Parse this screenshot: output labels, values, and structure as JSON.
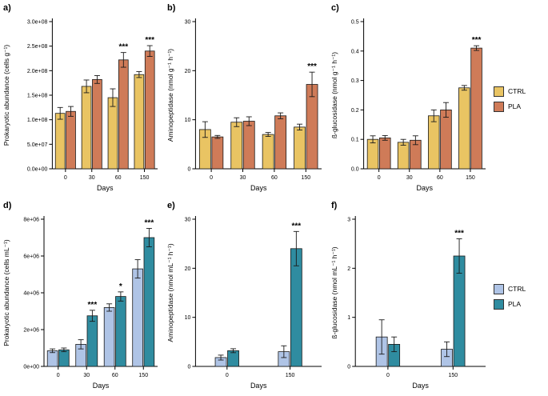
{
  "figure": {
    "background": "#ffffff"
  },
  "legends": [
    {
      "row": "top",
      "entries": [
        {
          "label": "CTRL",
          "color": "#E9C463"
        },
        {
          "label": "PLA",
          "color": "#CF7B58"
        }
      ]
    },
    {
      "row": "bottom",
      "entries": [
        {
          "label": "CTRL",
          "color": "#AFC4E6"
        },
        {
          "label": "PLA",
          "color": "#2F8CA0"
        }
      ]
    }
  ],
  "chart_data": [
    {
      "panel_label": "a)",
      "type": "bar",
      "xlabel": "Days",
      "ylabel": "Prokaryotic abundance (cells g⁻¹)",
      "categories": [
        "0",
        "30",
        "60",
        "150"
      ],
      "ylim": [
        0,
        300000000.0
      ],
      "yticks": [
        0,
        50000000.0,
        100000000.0,
        150000000.0,
        200000000.0,
        250000000.0,
        300000000.0
      ],
      "ytick_labels": [
        "0.0e+00",
        "5.0e+07",
        "1.0e+08",
        "1.5e+08",
        "2.0e+08",
        "2.5e+08",
        "3.0e+08"
      ],
      "series": [
        {
          "name": "CTRL",
          "color": "#E9C463",
          "values": [
            113000000.0,
            168000000.0,
            145000000.0,
            192000000.0
          ],
          "errors": [
            12000000.0,
            13000000.0,
            18000000.0,
            6000000.0
          ]
        },
        {
          "name": "PLA",
          "color": "#CF7B58",
          "values": [
            117000000.0,
            182000000.0,
            222000000.0,
            240000000.0
          ],
          "errors": [
            10000000.0,
            8000000.0,
            15000000.0,
            11000000.0
          ]
        }
      ],
      "significance": [
        {
          "category_index": 2,
          "series_index": 1,
          "label": "***"
        },
        {
          "category_index": 3,
          "series_index": 1,
          "label": "***"
        }
      ]
    },
    {
      "panel_label": "b)",
      "type": "bar",
      "xlabel": "Days",
      "ylabel": "Aminopeptidase (nmol g⁻¹ h⁻¹)",
      "categories": [
        "0",
        "30",
        "60",
        "150"
      ],
      "ylim": [
        0,
        30
      ],
      "yticks": [
        0,
        10,
        20,
        30
      ],
      "ytick_labels": [
        "0",
        "10",
        "20",
        "30"
      ],
      "series": [
        {
          "name": "CTRL",
          "color": "#E9C463",
          "values": [
            8.0,
            9.5,
            7.0,
            8.5
          ],
          "errors": [
            1.6,
            0.9,
            0.4,
            0.6
          ]
        },
        {
          "name": "PLA",
          "color": "#CF7B58",
          "values": [
            6.5,
            9.7,
            10.8,
            17.2
          ],
          "errors": [
            0.3,
            0.9,
            0.6,
            2.5
          ]
        }
      ],
      "significance": [
        {
          "category_index": 3,
          "series_index": 1,
          "label": "***"
        }
      ]
    },
    {
      "panel_label": "c)",
      "type": "bar",
      "xlabel": "Days",
      "ylabel": "ß-glucosidase (nmol g⁻¹ h⁻¹)",
      "categories": [
        "0",
        "30",
        "60",
        "150"
      ],
      "ylim": [
        0,
        0.5
      ],
      "yticks": [
        0,
        0.1,
        0.2,
        0.3,
        0.4,
        0.5
      ],
      "ytick_labels": [
        "0.0",
        "0.1",
        "0.2",
        "0.3",
        "0.4",
        "0.5"
      ],
      "series": [
        {
          "name": "CTRL",
          "color": "#E9C463",
          "values": [
            0.1,
            0.09,
            0.18,
            0.275
          ],
          "errors": [
            0.012,
            0.01,
            0.02,
            0.008
          ]
        },
        {
          "name": "PLA",
          "color": "#CF7B58",
          "values": [
            0.105,
            0.097,
            0.2,
            0.41
          ],
          "errors": [
            0.008,
            0.015,
            0.025,
            0.008
          ]
        }
      ],
      "significance": [
        {
          "category_index": 3,
          "series_index": 1,
          "label": "***"
        }
      ]
    },
    {
      "panel_label": "d)",
      "type": "bar",
      "xlabel": "Days",
      "ylabel": "Prokaryotic abundance (cells mL⁻¹)",
      "categories": [
        "0",
        "30",
        "60",
        "150"
      ],
      "ylim": [
        0,
        8000000.0
      ],
      "yticks": [
        0,
        2000000.0,
        4000000.0,
        6000000.0,
        8000000.0
      ],
      "ytick_labels": [
        "0e+00",
        "2e+06",
        "4e+06",
        "6e+06",
        "8e+06"
      ],
      "series": [
        {
          "name": "CTRL",
          "color": "#AFC4E6",
          "values": [
            850000.0,
            1200000.0,
            3200000.0,
            5300000.0
          ],
          "errors": [
            100000.0,
            250000.0,
            200000.0,
            500000.0
          ]
        },
        {
          "name": "PLA",
          "color": "#2F8CA0",
          "values": [
            900000.0,
            2750000.0,
            3800000.0,
            7000000.0
          ],
          "errors": [
            100000.0,
            300000.0,
            250000.0,
            500000.0
          ]
        }
      ],
      "significance": [
        {
          "category_index": 1,
          "series_index": 1,
          "label": "***"
        },
        {
          "category_index": 2,
          "series_index": 1,
          "label": "*"
        },
        {
          "category_index": 3,
          "series_index": 1,
          "label": "***"
        }
      ]
    },
    {
      "panel_label": "e)",
      "type": "bar",
      "xlabel": "Days",
      "ylabel": "Aminopeptidase (nmol mL⁻¹ h⁻¹)",
      "categories": [
        "0",
        "150"
      ],
      "ylim": [
        0,
        30
      ],
      "yticks": [
        0,
        10,
        20,
        30
      ],
      "ytick_labels": [
        "0",
        "10",
        "20",
        "30"
      ],
      "series": [
        {
          "name": "CTRL",
          "color": "#AFC4E6",
          "values": [
            1.8,
            3.0
          ],
          "errors": [
            0.5,
            1.2
          ]
        },
        {
          "name": "PLA",
          "color": "#2F8CA0",
          "values": [
            3.2,
            24.0
          ],
          "errors": [
            0.4,
            3.5
          ]
        }
      ],
      "significance": [
        {
          "category_index": 1,
          "series_index": 1,
          "label": "***"
        }
      ]
    },
    {
      "panel_label": "f)",
      "type": "bar",
      "xlabel": "Days",
      "ylabel": "ß-glucosidase (nmol mL⁻¹ h⁻¹)",
      "categories": [
        "0",
        "150"
      ],
      "ylim": [
        0,
        3
      ],
      "yticks": [
        0,
        1,
        2,
        3
      ],
      "ytick_labels": [
        "0",
        "1",
        "2",
        "3"
      ],
      "series": [
        {
          "name": "CTRL",
          "color": "#AFC4E6",
          "values": [
            0.6,
            0.35
          ],
          "errors": [
            0.35,
            0.15
          ]
        },
        {
          "name": "PLA",
          "color": "#2F8CA0",
          "values": [
            0.45,
            2.25
          ],
          "errors": [
            0.15,
            0.35
          ]
        }
      ],
      "significance": [
        {
          "category_index": 1,
          "series_index": 1,
          "label": "***"
        }
      ]
    }
  ]
}
